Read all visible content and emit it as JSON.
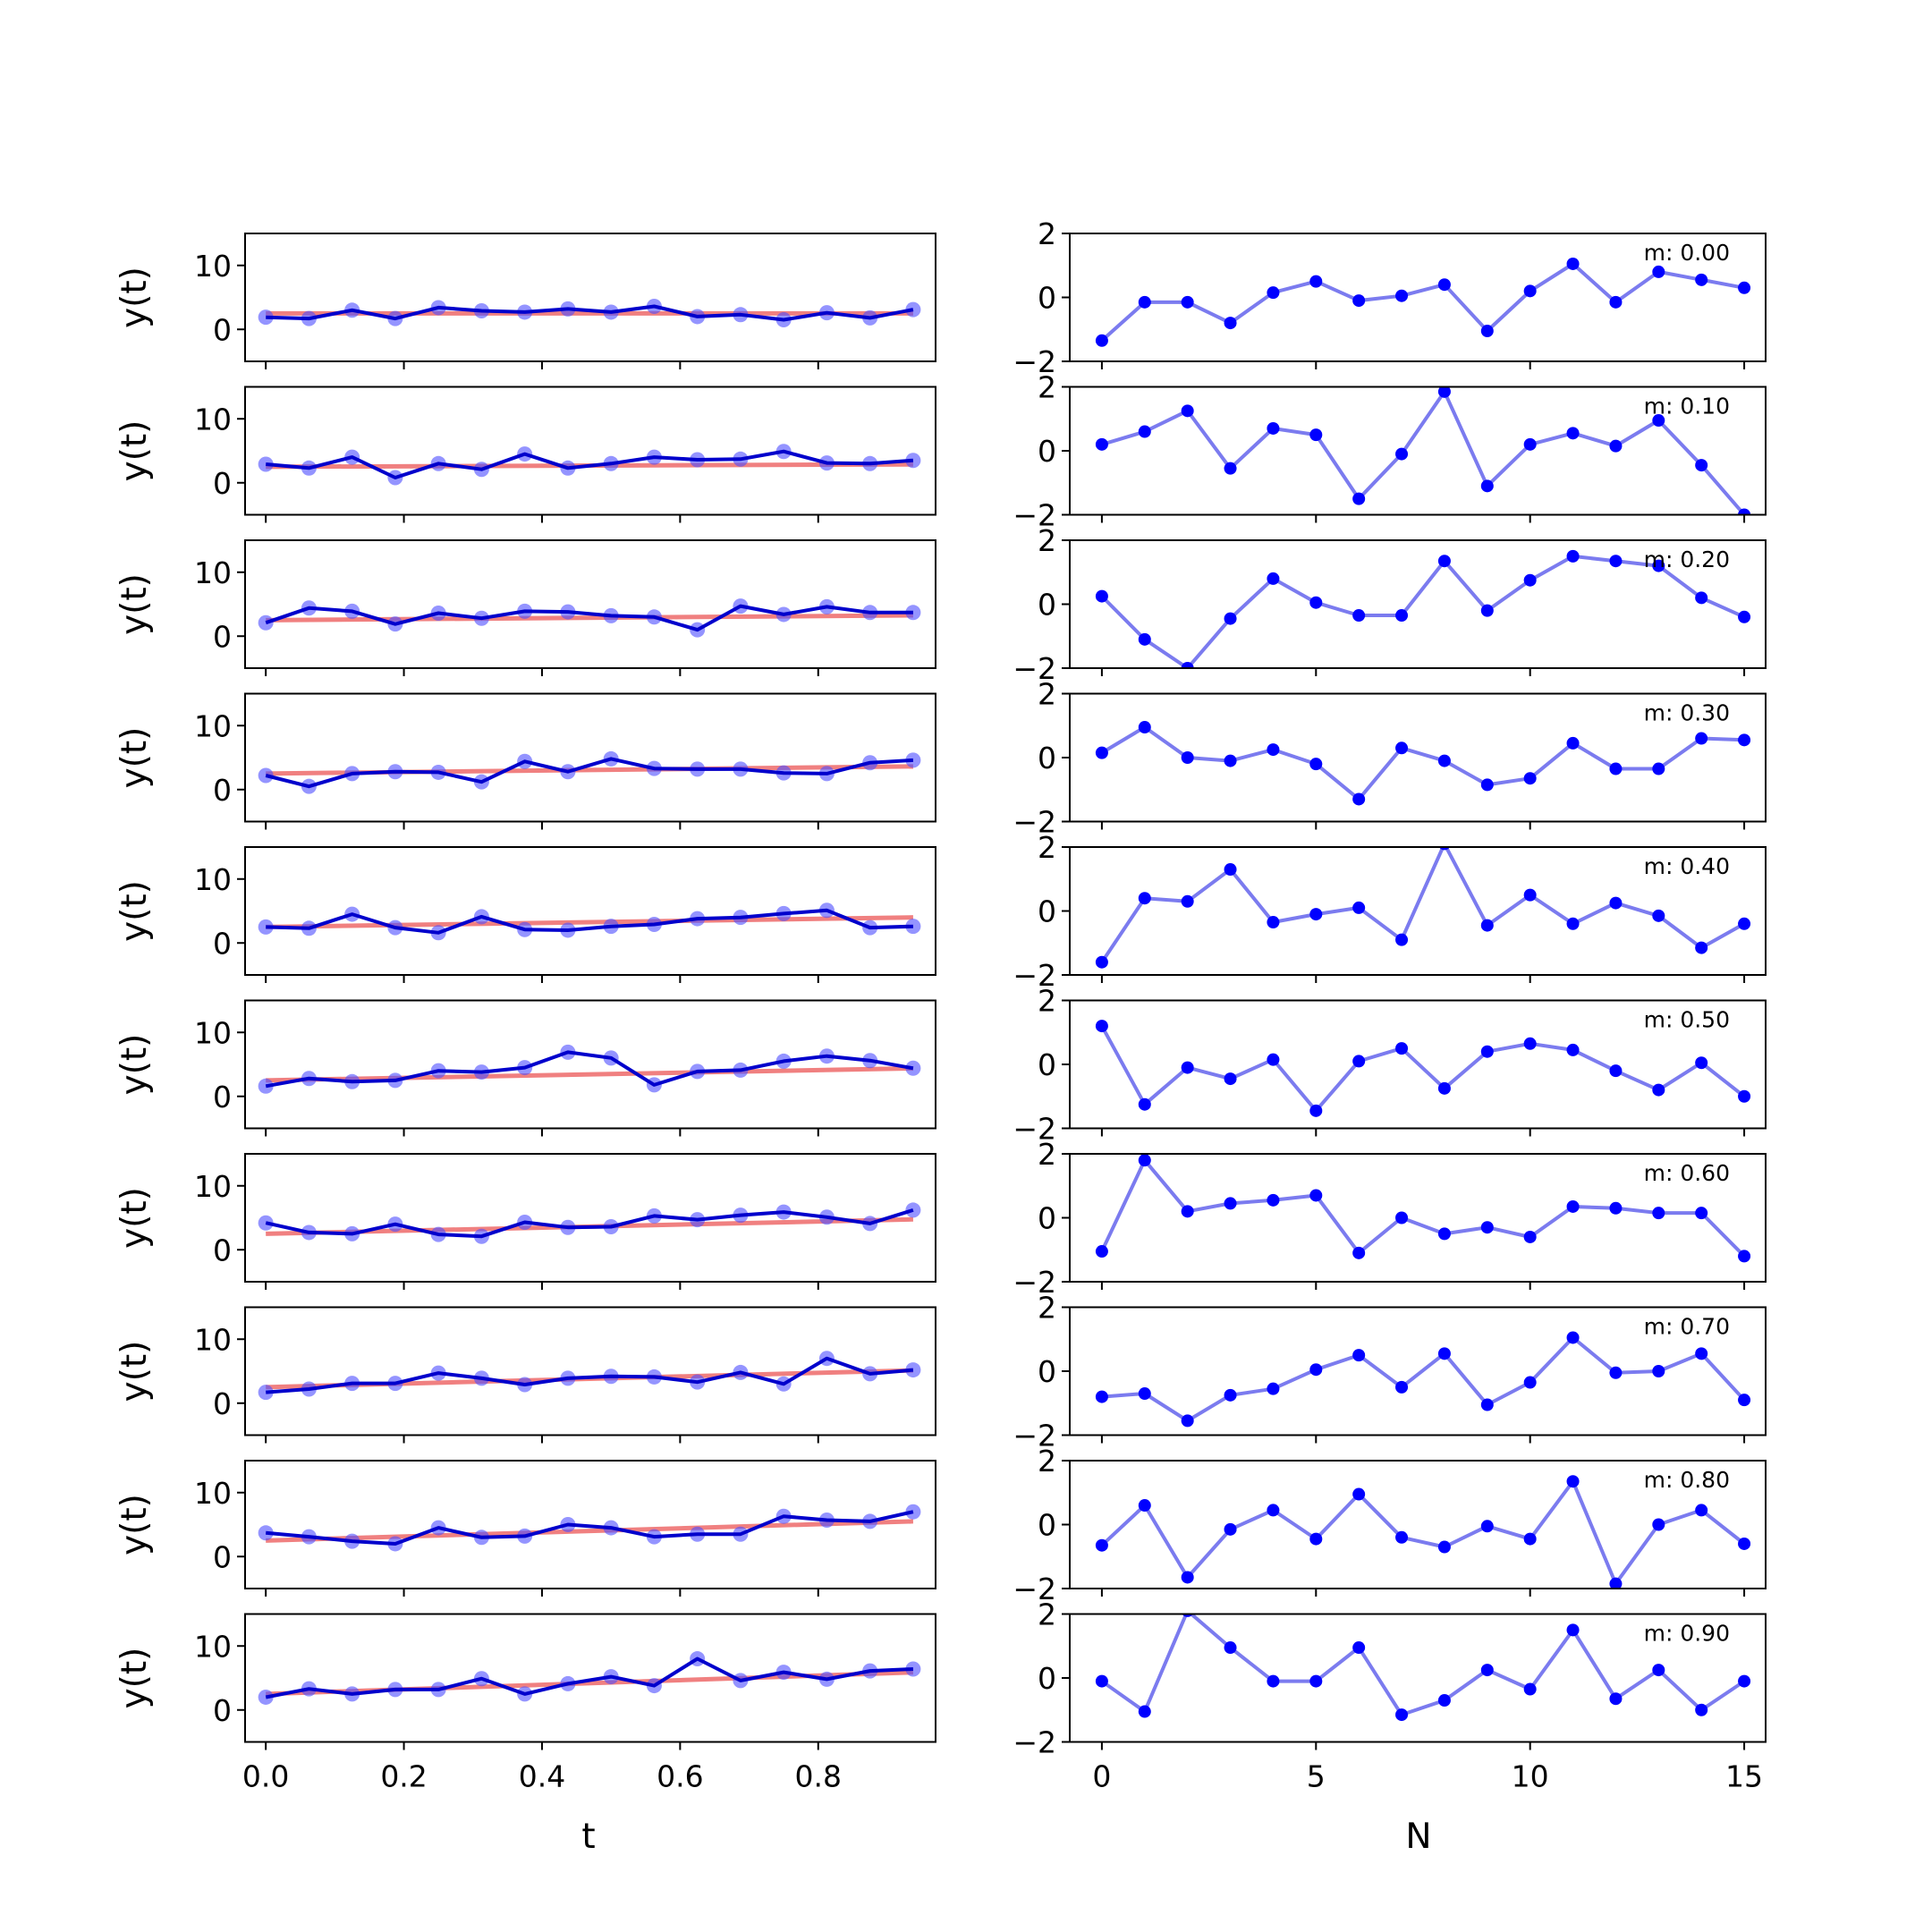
{
  "chart_data": [
    {
      "type": "line",
      "panel": "left",
      "xlabel": "t",
      "ylabel": "y(t)",
      "xlim": [
        -0.03,
        0.97
      ],
      "ylim": [
        -5,
        15
      ],
      "xticks": [
        "0.0",
        "0.2",
        "0.4",
        "0.6",
        "0.8"
      ],
      "yticks": [
        "0",
        "10"
      ],
      "x": [
        0.0,
        0.0625,
        0.125,
        0.1875,
        0.25,
        0.3125,
        0.375,
        0.4375,
        0.5,
        0.5625,
        0.625,
        0.6875,
        0.75,
        0.8125,
        0.875,
        0.9375
      ],
      "colors": {
        "data": "#0000cc",
        "markers": "#4d4dff",
        "trend": "#f08080"
      },
      "rows": [
        {
          "trend_slope": 0.0,
          "values": [
            1.9,
            1.7,
            3.0,
            1.7,
            3.4,
            2.9,
            2.7,
            3.2,
            2.7,
            3.6,
            2.0,
            2.3,
            1.5,
            2.6,
            1.8,
            3.1
          ]
        },
        {
          "trend_slope": 0.1,
          "values": [
            2.9,
            2.3,
            4.0,
            0.8,
            3.0,
            2.1,
            4.5,
            2.3,
            3.0,
            4.0,
            3.6,
            3.7,
            4.9,
            3.1,
            3.0,
            3.5
          ]
        },
        {
          "trend_slope": 0.2,
          "values": [
            2.1,
            4.4,
            3.9,
            1.9,
            3.6,
            2.8,
            3.9,
            3.8,
            3.2,
            3.0,
            1.0,
            4.7,
            3.4,
            4.6,
            3.7,
            3.7
          ]
        },
        {
          "trend_slope": 0.3,
          "values": [
            2.2,
            0.5,
            2.5,
            2.8,
            2.7,
            1.2,
            4.4,
            2.8,
            4.8,
            3.3,
            3.2,
            3.2,
            2.6,
            2.5,
            4.2,
            4.6
          ]
        },
        {
          "trend_slope": 0.4,
          "values": [
            2.5,
            2.3,
            4.5,
            2.4,
            1.6,
            4.1,
            2.1,
            2.0,
            2.6,
            2.9,
            3.8,
            4.0,
            4.6,
            5.1,
            2.4,
            2.6
          ]
        },
        {
          "trend_slope": 0.5,
          "values": [
            1.6,
            2.8,
            2.3,
            2.5,
            4.0,
            3.8,
            4.5,
            6.9,
            6.0,
            1.8,
            3.9,
            4.1,
            5.5,
            6.3,
            5.6,
            4.4
          ]
        },
        {
          "trend_slope": 0.6,
          "values": [
            4.2,
            2.7,
            2.5,
            4.0,
            2.4,
            2.1,
            4.3,
            3.5,
            3.6,
            5.3,
            4.7,
            5.4,
            5.9,
            5.1,
            4.1,
            6.2
          ]
        },
        {
          "trend_slope": 0.7,
          "values": [
            1.7,
            2.2,
            3.1,
            3.1,
            4.7,
            3.9,
            2.9,
            3.9,
            4.2,
            4.1,
            3.3,
            4.8,
            3.0,
            7.0,
            4.6,
            5.2
          ]
        },
        {
          "trend_slope": 0.8,
          "values": [
            3.7,
            3.1,
            2.4,
            2.0,
            4.5,
            3.0,
            3.2,
            5.0,
            4.5,
            3.1,
            3.5,
            3.5,
            6.3,
            5.7,
            5.5,
            7.0
          ]
        },
        {
          "trend_slope": 0.9,
          "values": [
            2.0,
            3.3,
            2.5,
            3.2,
            3.2,
            4.9,
            2.5,
            4.1,
            5.2,
            3.8,
            8.0,
            4.6,
            5.9,
            4.8,
            6.1,
            6.4
          ]
        }
      ]
    },
    {
      "type": "line",
      "panel": "right",
      "xlabel": "N",
      "xlim": [
        -0.75,
        15.5
      ],
      "ylim": [
        -2,
        2
      ],
      "xticks": [
        "0",
        "5",
        "10",
        "15"
      ],
      "yticks": [
        "−2",
        "0",
        "2"
      ],
      "x": [
        0,
        1,
        2,
        3,
        4,
        5,
        6,
        7,
        8,
        9,
        10,
        11,
        12,
        13,
        14,
        15
      ],
      "colors": {
        "line": "#7b7bef",
        "markers": "#0000ff"
      },
      "rows": [
        {
          "label": "m: 0.00",
          "values": [
            -1.35,
            -0.15,
            -0.15,
            -0.8,
            0.15,
            0.5,
            -0.1,
            0.05,
            0.4,
            -1.05,
            0.2,
            1.05,
            -0.15,
            0.8,
            0.55,
            0.3
          ]
        },
        {
          "label": "m: 0.10",
          "values": [
            0.2,
            0.6,
            1.25,
            -0.55,
            0.7,
            0.5,
            -1.5,
            -0.1,
            1.85,
            -1.1,
            0.2,
            0.55,
            0.15,
            0.95,
            -0.45,
            -2.0
          ]
        },
        {
          "label": "m: 0.20",
          "values": [
            0.25,
            -1.1,
            -2.0,
            -0.45,
            0.8,
            0.05,
            -0.35,
            -0.35,
            1.35,
            -0.2,
            0.75,
            1.5,
            1.35,
            1.2,
            0.2,
            -0.4
          ]
        },
        {
          "label": "m: 0.30",
          "values": [
            0.15,
            0.95,
            0.0,
            -0.1,
            0.25,
            -0.2,
            -1.3,
            0.3,
            -0.1,
            -0.85,
            -0.65,
            0.45,
            -0.35,
            -0.35,
            0.6,
            0.55
          ]
        },
        {
          "label": "m: 0.40",
          "values": [
            -1.6,
            0.4,
            0.3,
            1.3,
            -0.35,
            -0.1,
            0.1,
            -0.9,
            2.1,
            -0.45,
            0.5,
            -0.4,
            0.25,
            -0.15,
            -1.15,
            -0.4
          ]
        },
        {
          "label": "m: 0.50",
          "values": [
            1.2,
            -1.25,
            -0.1,
            -0.45,
            0.15,
            -1.45,
            0.1,
            0.5,
            -0.75,
            0.4,
            0.65,
            0.45,
            -0.2,
            -0.8,
            0.05,
            -1.0
          ]
        },
        {
          "label": "m: 0.60",
          "values": [
            -1.05,
            1.8,
            0.2,
            0.45,
            0.55,
            0.7,
            -1.1,
            0.0,
            -0.5,
            -0.3,
            -0.6,
            0.35,
            0.3,
            0.15,
            0.15,
            -1.2
          ]
        },
        {
          "label": "m: 0.70",
          "values": [
            -0.8,
            -0.7,
            -1.55,
            -0.75,
            -0.55,
            0.05,
            0.5,
            -0.5,
            0.55,
            -1.05,
            -0.35,
            1.05,
            -0.05,
            0.0,
            0.55,
            -0.9
          ]
        },
        {
          "label": "m: 0.80",
          "values": [
            -0.65,
            0.6,
            -1.65,
            -0.15,
            0.45,
            -0.45,
            0.95,
            -0.4,
            -0.7,
            -0.05,
            -0.45,
            1.35,
            -1.85,
            0.0,
            0.45,
            -0.6
          ]
        },
        {
          "label": "m: 0.90",
          "values": [
            -0.1,
            -1.05,
            2.1,
            0.95,
            -0.1,
            -0.1,
            0.95,
            -1.15,
            -0.7,
            0.25,
            -0.35,
            1.5,
            -0.65,
            0.25,
            -1.0,
            -0.1
          ]
        }
      ]
    }
  ]
}
